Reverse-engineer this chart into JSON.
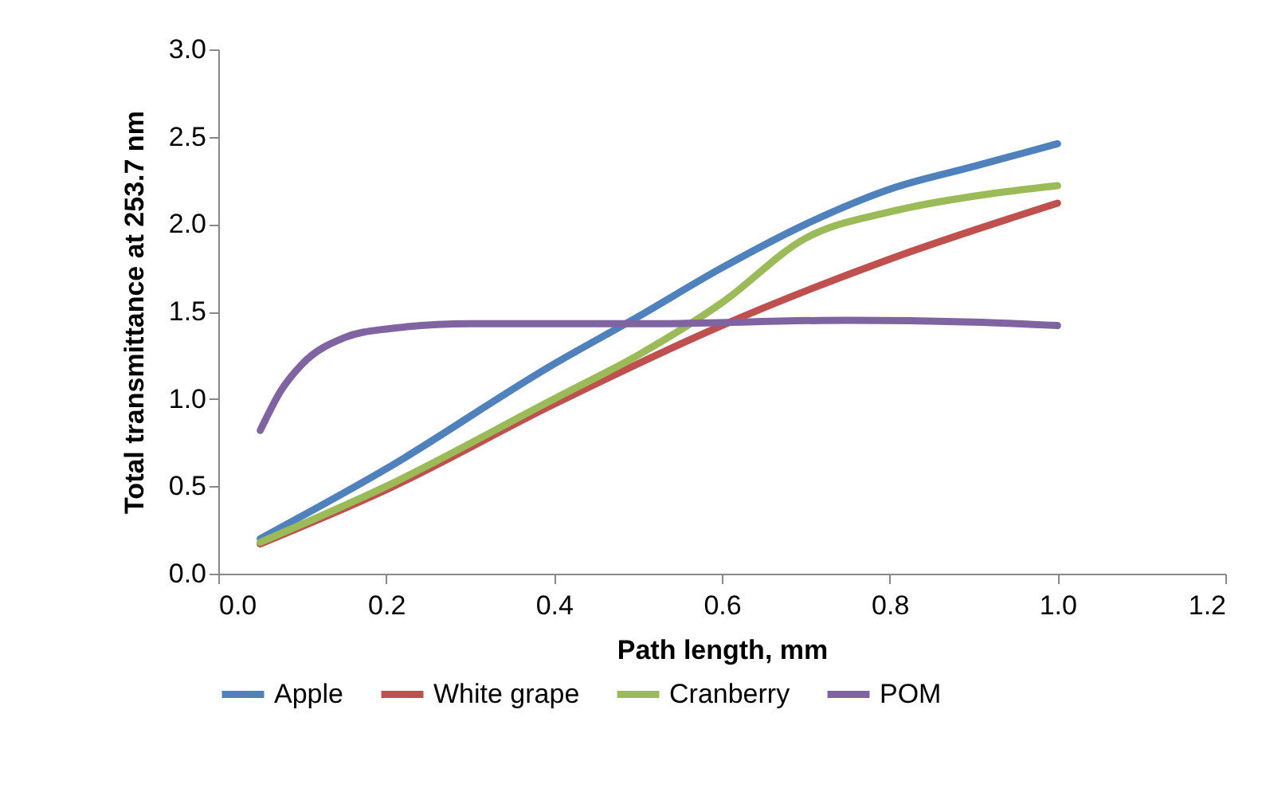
{
  "chart_data": {
    "type": "line",
    "xlabel": "Path length, mm",
    "ylabel": "Total transmittance at 253.7 nm",
    "xlim": [
      0,
      1.2
    ],
    "xticks": [
      {
        "value": 0,
        "label": "0.0"
      },
      {
        "value": 0.2,
        "label": "0.2"
      },
      {
        "value": 0.4,
        "label": "0.4"
      },
      {
        "value": 0.6,
        "label": "0.6"
      },
      {
        "value": 0.8,
        "label": "0.8"
      },
      {
        "value": 1,
        "label": "1.0"
      },
      {
        "value": 1.2,
        "label": "1.2"
      }
    ],
    "ylim": [
      0,
      3
    ],
    "yticks": [
      {
        "value": 0,
        "label": "0.0"
      },
      {
        "value": 0.5,
        "label": "0.5"
      },
      {
        "value": 1,
        "label": "1.0"
      },
      {
        "value": 1.5,
        "label": "1.5"
      },
      {
        "value": 2,
        "label": "2.0"
      },
      {
        "value": 2.5,
        "label": "2.5"
      },
      {
        "value": 3,
        "label": "3.0"
      }
    ],
    "grid": false,
    "legend": "bottom",
    "marker": "none",
    "line_style": "solid",
    "series": [
      {
        "name": "Apple",
        "color": "#4f81bd",
        "x": [
          0.05,
          0.2,
          0.4,
          0.5,
          0.6,
          0.7,
          0.8,
          0.9,
          1.0
        ],
        "values": [
          0.2,
          0.6,
          1.2,
          1.47,
          1.75,
          2.0,
          2.2,
          2.33,
          2.46
        ]
      },
      {
        "name": "White grape",
        "color": "#c0504d",
        "x": [
          0.05,
          0.2,
          0.4,
          0.6,
          0.8,
          1.0
        ],
        "values": [
          0.17,
          0.48,
          0.97,
          1.42,
          1.8,
          2.12
        ]
      },
      {
        "name": "Cranberry",
        "color": "#9bbb59",
        "x": [
          0.05,
          0.2,
          0.4,
          0.5,
          0.6,
          0.7,
          0.8,
          0.9,
          1.0
        ],
        "values": [
          0.18,
          0.5,
          1.0,
          1.25,
          1.55,
          1.92,
          2.07,
          2.16,
          2.22
        ]
      },
      {
        "name": "POM",
        "color": "#8064a2",
        "x": [
          0.05,
          0.075,
          0.1,
          0.15,
          0.2,
          0.3,
          0.5,
          0.75,
          0.9,
          1.0
        ],
        "values": [
          0.82,
          1.05,
          1.2,
          1.35,
          1.4,
          1.43,
          1.43,
          1.45,
          1.44,
          1.42
        ]
      }
    ]
  }
}
